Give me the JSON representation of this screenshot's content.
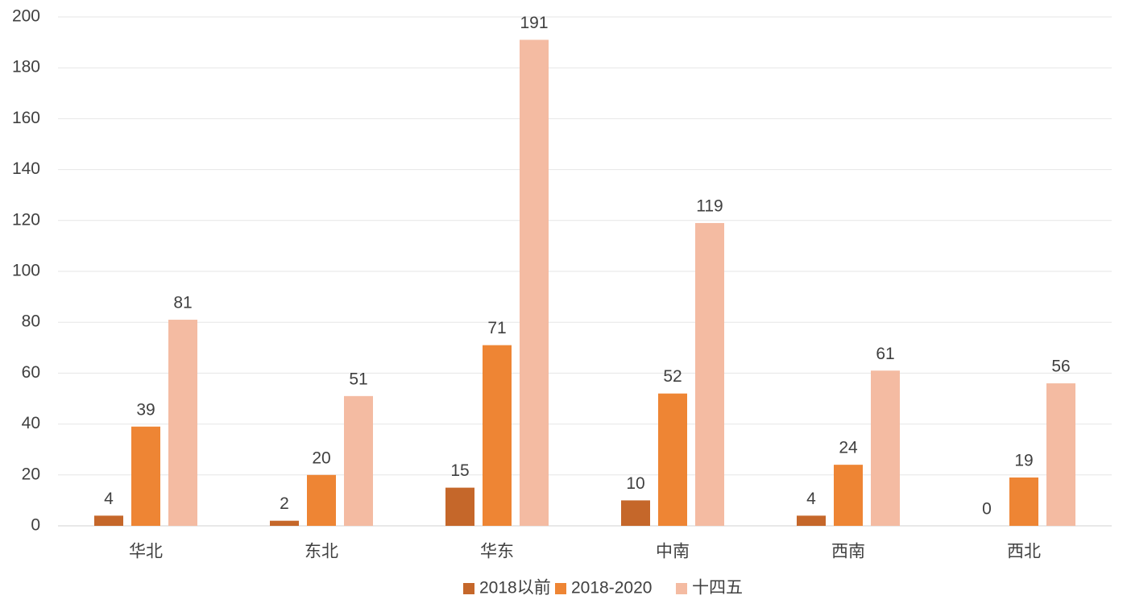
{
  "chart_data": {
    "type": "bar",
    "categories": [
      "华北",
      "东北",
      "华东",
      "中南",
      "西南",
      "西北"
    ],
    "series": [
      {
        "name": "2018以前",
        "color": "#c5672a",
        "values": [
          4,
          2,
          15,
          10,
          4,
          0
        ]
      },
      {
        "name": "2018-2020",
        "color": "#ee8534",
        "values": [
          39,
          20,
          71,
          52,
          24,
          19
        ]
      },
      {
        "name": "十四五",
        "color": "#f4bba2",
        "values": [
          81,
          51,
          191,
          119,
          61,
          56
        ]
      }
    ],
    "ylim": [
      0,
      200
    ],
    "yticks": [
      0,
      20,
      40,
      60,
      80,
      100,
      120,
      140,
      160,
      180,
      200
    ],
    "grid": true,
    "legend": "bottom"
  }
}
